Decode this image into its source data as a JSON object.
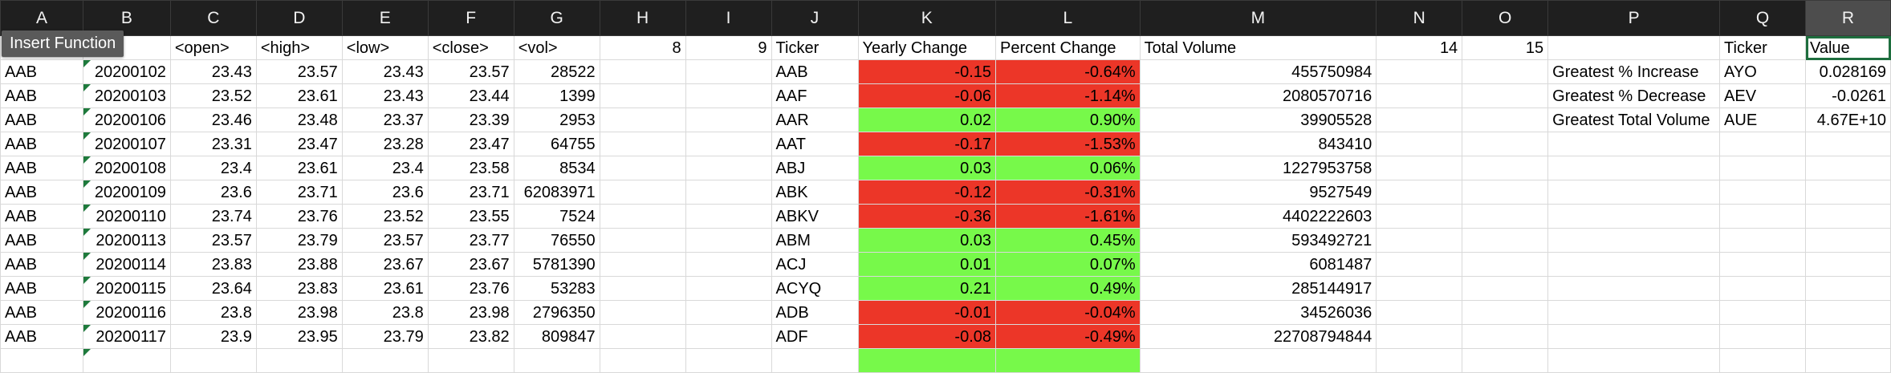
{
  "colors": {
    "positive": "#77f94a",
    "negative": "#ec3628",
    "header_bg": "#1f1f1f",
    "selection": "#1e6e3e"
  },
  "tooltip": "Insert Function",
  "column_letters": [
    "A",
    "B",
    "C",
    "D",
    "E",
    "F",
    "G",
    "H",
    "I",
    "J",
    "K",
    "L",
    "M",
    "N",
    "O",
    "P",
    "Q",
    "R"
  ],
  "selected_column": "R",
  "header_row": [
    "",
    "",
    "<open>",
    "<high>",
    "<low>",
    "<close>",
    "<vol>",
    "8",
    "9",
    "Ticker",
    "Yearly Change",
    "Percent Change",
    "Total Volume",
    "14",
    "15",
    "",
    "Ticker",
    "Value"
  ],
  "stock_rows": [
    [
      "AAB",
      "20200102",
      "23.43",
      "23.57",
      "23.43",
      "23.57",
      "28522"
    ],
    [
      "AAB",
      "20200103",
      "23.52",
      "23.61",
      "23.43",
      "23.44",
      "1399"
    ],
    [
      "AAB",
      "20200106",
      "23.46",
      "23.48",
      "23.37",
      "23.39",
      "2953"
    ],
    [
      "AAB",
      "20200107",
      "23.31",
      "23.47",
      "23.28",
      "23.47",
      "64755"
    ],
    [
      "AAB",
      "20200108",
      "23.4",
      "23.61",
      "23.4",
      "23.58",
      "8534"
    ],
    [
      "AAB",
      "20200109",
      "23.6",
      "23.71",
      "23.6",
      "23.71",
      "62083971"
    ],
    [
      "AAB",
      "20200110",
      "23.74",
      "23.76",
      "23.52",
      "23.55",
      "7524"
    ],
    [
      "AAB",
      "20200113",
      "23.57",
      "23.79",
      "23.57",
      "23.77",
      "76550"
    ],
    [
      "AAB",
      "20200114",
      "23.83",
      "23.88",
      "23.67",
      "23.67",
      "5781390"
    ],
    [
      "AAB",
      "20200115",
      "23.64",
      "23.83",
      "23.61",
      "23.76",
      "53283"
    ],
    [
      "AAB",
      "20200116",
      "23.8",
      "23.98",
      "23.8",
      "23.98",
      "2796350"
    ],
    [
      "AAB",
      "20200117",
      "23.9",
      "23.95",
      "23.79",
      "23.82",
      "809847"
    ]
  ],
  "summary_rows": [
    {
      "ticker": "AAB",
      "yearly": "-0.15",
      "percent": "-0.64%",
      "volume": "455750984",
      "trend": "negative"
    },
    {
      "ticker": "AAF",
      "yearly": "-0.06",
      "percent": "-1.14%",
      "volume": "2080570716",
      "trend": "negative"
    },
    {
      "ticker": "AAR",
      "yearly": "0.02",
      "percent": "0.90%",
      "volume": "39905528",
      "trend": "positive"
    },
    {
      "ticker": "AAT",
      "yearly": "-0.17",
      "percent": "-1.53%",
      "volume": "843410",
      "trend": "negative"
    },
    {
      "ticker": "ABJ",
      "yearly": "0.03",
      "percent": "0.06%",
      "volume": "1227953758",
      "trend": "positive"
    },
    {
      "ticker": "ABK",
      "yearly": "-0.12",
      "percent": "-0.31%",
      "volume": "9527549",
      "trend": "negative"
    },
    {
      "ticker": "ABKV",
      "yearly": "-0.36",
      "percent": "-1.61%",
      "volume": "4402222603",
      "trend": "negative"
    },
    {
      "ticker": "ABM",
      "yearly": "0.03",
      "percent": "0.45%",
      "volume": "593492721",
      "trend": "positive"
    },
    {
      "ticker": "ACJ",
      "yearly": "0.01",
      "percent": "0.07%",
      "volume": "6081487",
      "trend": "positive"
    },
    {
      "ticker": "ACYQ",
      "yearly": "0.21",
      "percent": "0.49%",
      "volume": "285144917",
      "trend": "positive"
    },
    {
      "ticker": "ADB",
      "yearly": "-0.01",
      "percent": "-0.04%",
      "volume": "34526036",
      "trend": "negative"
    },
    {
      "ticker": "ADF",
      "yearly": "-0.08",
      "percent": "-0.49%",
      "volume": "22708794844",
      "trend": "negative"
    }
  ],
  "greatest": [
    {
      "label": "Greatest % Increase",
      "ticker": "AYO",
      "value": "0.028169"
    },
    {
      "label": "Greatest % Decrease",
      "ticker": "AEV",
      "value": "-0.0261"
    },
    {
      "label": "Greatest Total Volume",
      "ticker": "AUE",
      "value": "4.67E+10"
    }
  ]
}
